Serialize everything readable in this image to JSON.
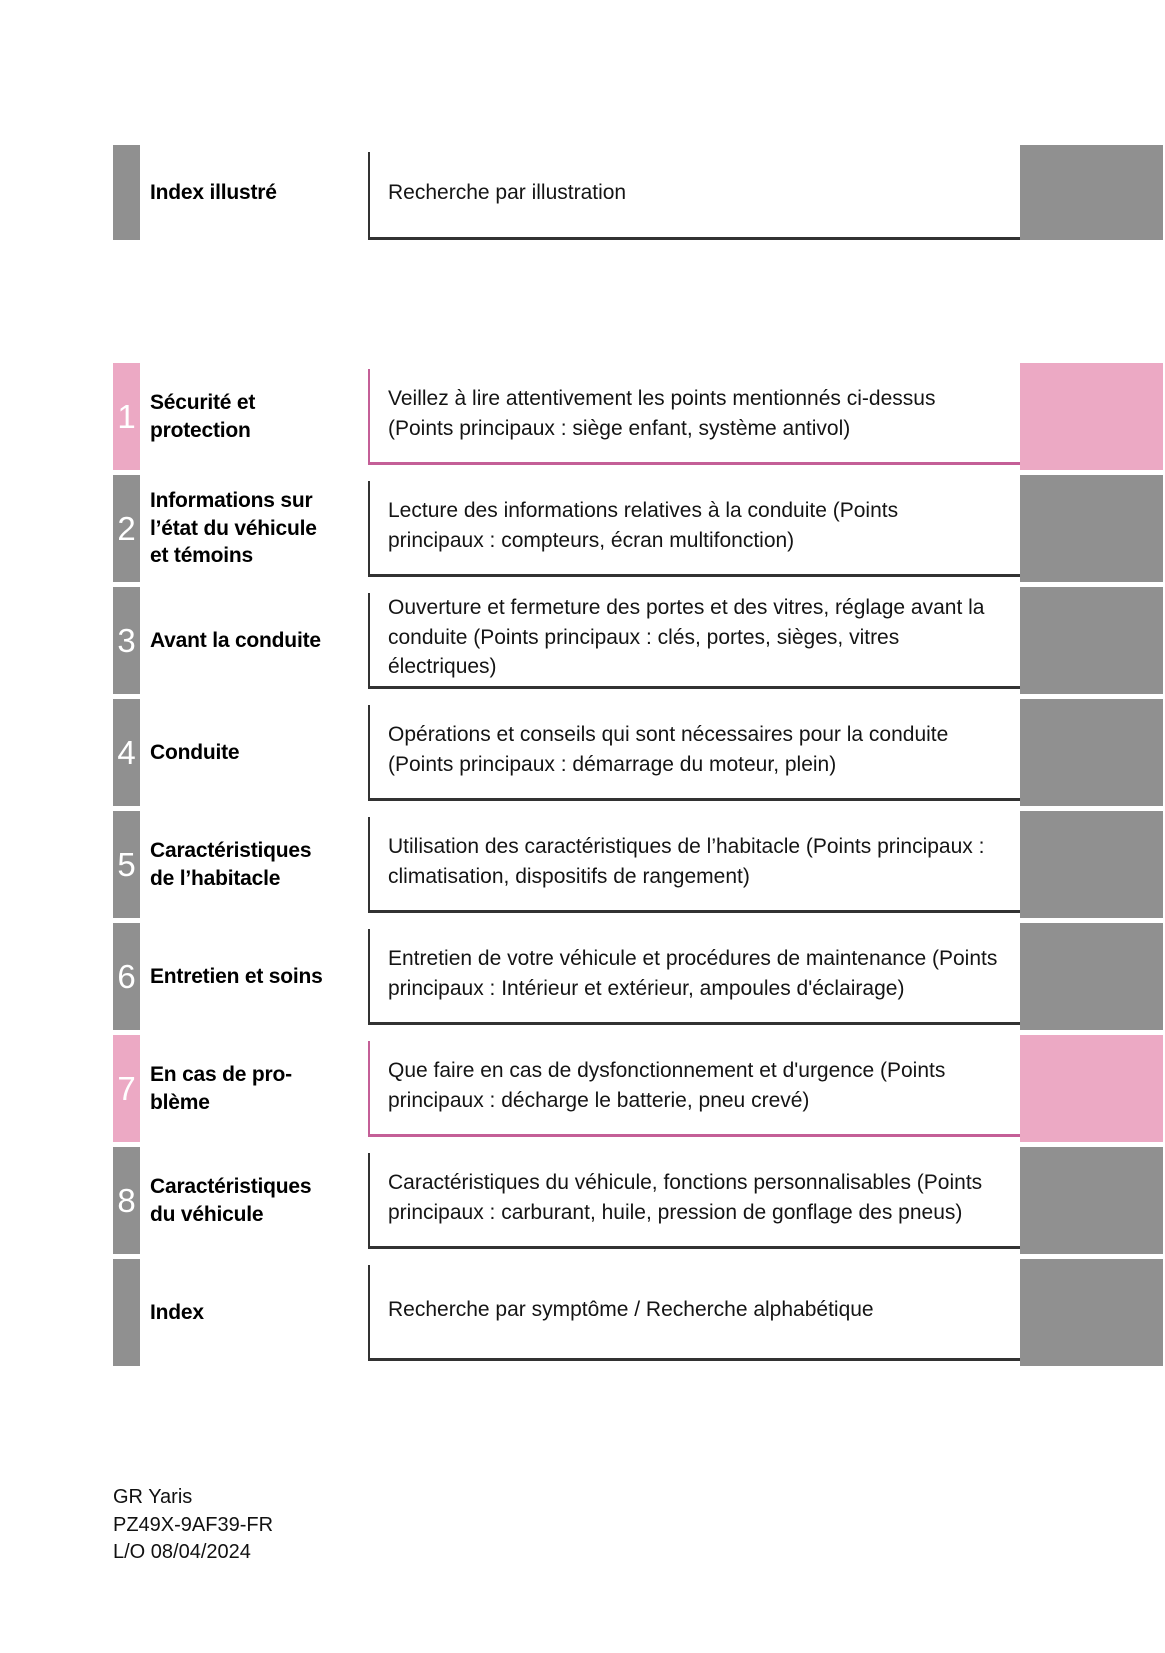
{
  "theme": {
    "tab_gray": "#909090",
    "tab_pink": "#eca9c4",
    "border_pink": "#c45f97",
    "border_dark": "#323232"
  },
  "header_row": {
    "label": "Index illustré",
    "description": "Recherche par illustration"
  },
  "rows": [
    {
      "number": "1",
      "title": "Sécurité et\nprotection",
      "description": "Veillez à lire attentivement les points mentionnés ci-dessus (Points principaux : siège enfant, système antivol)",
      "highlighted": true
    },
    {
      "number": "2",
      "title": "Informations sur\nl’état du véhicule\net témoins",
      "description": "Lecture des informations relatives à la conduite (Points principaux : compteurs, écran multifonction)",
      "highlighted": false
    },
    {
      "number": "3",
      "title": "Avant la conduite",
      "description": "Ouverture et fermeture des portes et des vitres, réglage avant la conduite (Points principaux : clés, portes, sièges, vitres électriques)",
      "highlighted": false
    },
    {
      "number": "4",
      "title": "Conduite",
      "description": "Opérations et conseils qui sont nécessaires pour la conduite (Points principaux : démarrage du moteur, plein)",
      "highlighted": false
    },
    {
      "number": "5",
      "title": "Caractéristiques\nde l’habitacle",
      "description": "Utilisation des caractéristiques de l’habitacle (Points principaux : climatisation, dispositifs de rangement)",
      "highlighted": false
    },
    {
      "number": "6",
      "title": "Entretien et soins",
      "description": "Entretien de votre véhicule et procédures de maintenance (Points principaux : Intérieur et extérieur, ampoules d'éclairage)",
      "highlighted": false
    },
    {
      "number": "7",
      "title": "En cas de pro-\nblème",
      "description": "Que faire en cas de dysfonctionnement et d'urgence (Points principaux : décharge le batterie, pneu crevé)",
      "highlighted": true
    },
    {
      "number": "8",
      "title": "Caractéristiques\ndu véhicule",
      "description": "Caractéristiques du véhicule, fonctions personnalisables (Points principaux : carburant, huile, pression de gonflage des pneus)",
      "highlighted": false
    },
    {
      "number": "",
      "title": "Index",
      "description": "Recherche par symptôme / Recherche alphabétique",
      "highlighted": false
    }
  ],
  "footer": {
    "model": "GR Yaris",
    "part_number": "PZ49X-9AF39-FR",
    "layout_date": "L/O 08/04/2024"
  }
}
